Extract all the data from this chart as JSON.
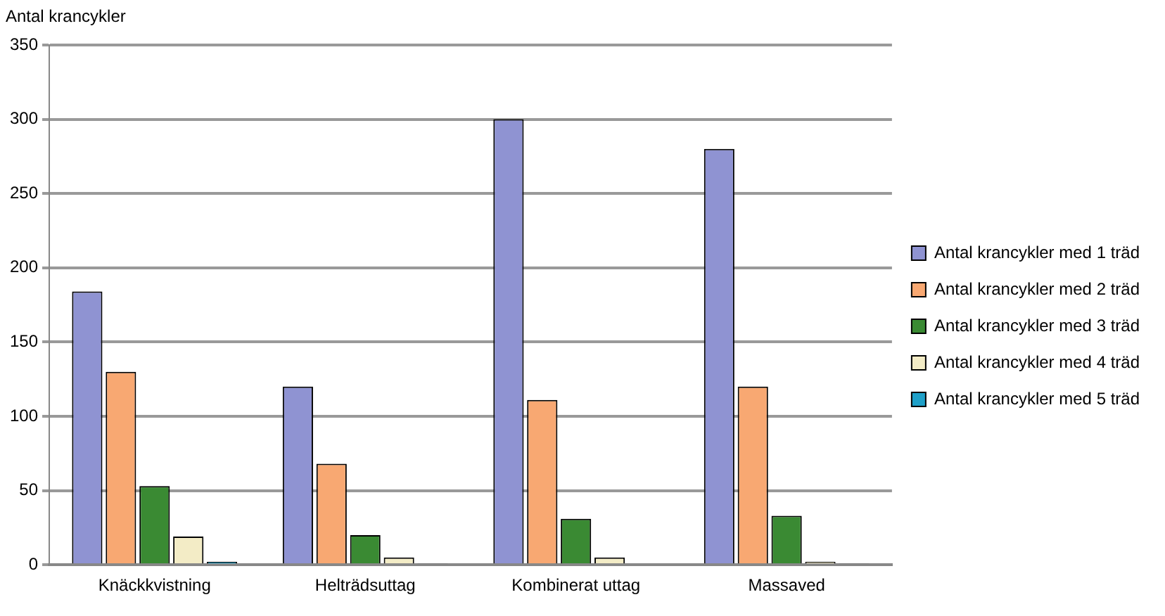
{
  "chart_data": {
    "type": "bar",
    "ylabel": "Antal krancykler",
    "categories": [
      "Knäckkvistning",
      "Helträdsuttag",
      "Kombinerat uttag",
      "Massaved"
    ],
    "series": [
      {
        "name": "Antal krancykler med 1 träd",
        "color": "#8f93d2",
        "values": [
          184,
          120,
          300,
          280
        ]
      },
      {
        "name": "Antal krancykler med 2 träd",
        "color": "#f8a872",
        "values": [
          130,
          68,
          111,
          120
        ]
      },
      {
        "name": "Antal krancykler med 3 träd",
        "color": "#3a8a33",
        "values": [
          53,
          20,
          31,
          33
        ]
      },
      {
        "name": "Antal krancykler med 4 träd",
        "color": "#f3ecc6",
        "values": [
          19,
          5,
          5,
          2
        ]
      },
      {
        "name": "Antal krancykler med 5 träd",
        "color": "#1fa0c8",
        "values": [
          2,
          1,
          0,
          1
        ]
      }
    ],
    "ylim": [
      0,
      350
    ],
    "yticks": [
      0,
      50,
      100,
      150,
      200,
      250,
      300,
      350
    ],
    "grid": "y",
    "legend": "right"
  }
}
